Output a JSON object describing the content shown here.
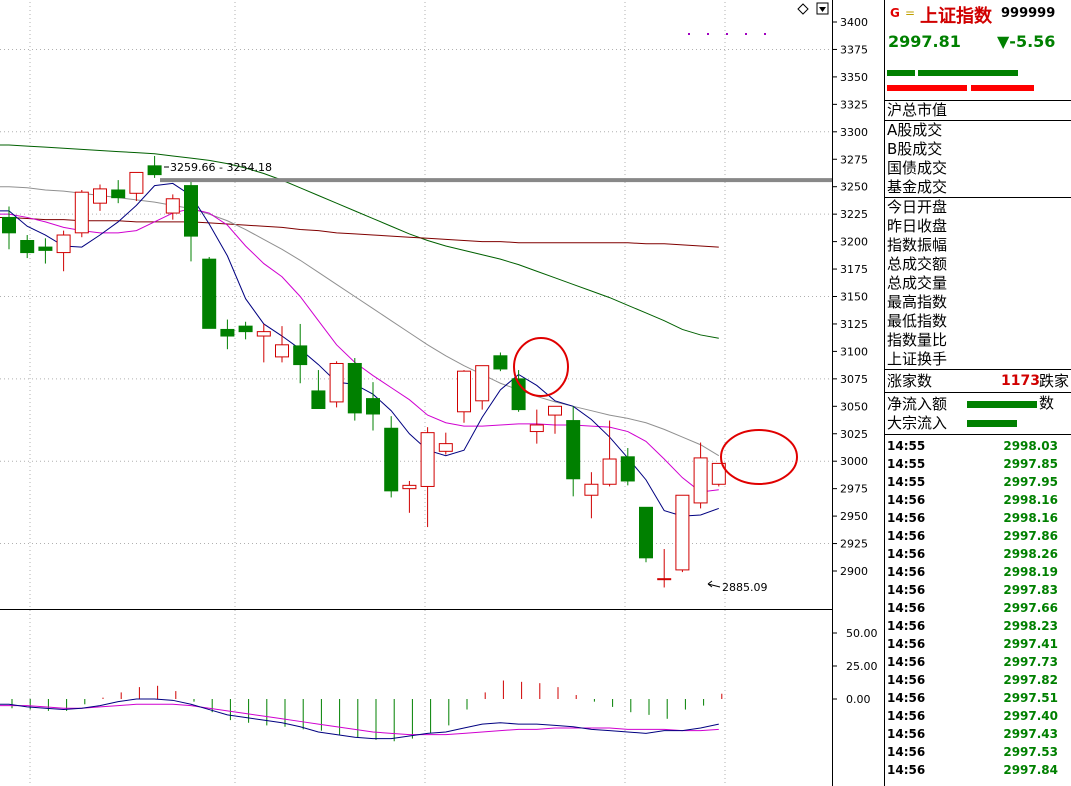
{
  "header": {
    "g_icon": "G",
    "eq_icon": "=",
    "name": "上证指数",
    "code": "999999"
  },
  "price": {
    "last": "2997.81",
    "change": "▼-5.56"
  },
  "bars": {
    "green": "#008000",
    "red": "#ff0000"
  },
  "info_group1": [
    "沪总市值"
  ],
  "info_group2": [
    "A股成交",
    "B股成交",
    "国债成交",
    "基金成交"
  ],
  "info_group3": [
    "今日开盘",
    "昨日收盘",
    "指数振幅",
    "总成交额",
    "总成交量",
    "最高指数",
    "最低指数",
    "指数量比",
    "上证换手"
  ],
  "advance": {
    "label": "涨家数",
    "count": "1173",
    "decline_label": "跌家数"
  },
  "flows": [
    {
      "label": "净流入额"
    },
    {
      "label": "大宗流入"
    }
  ],
  "ticks": [
    {
      "t": "14:55",
      "p": "2998.03"
    },
    {
      "t": "14:55",
      "p": "2997.85"
    },
    {
      "t": "14:55",
      "p": "2997.95"
    },
    {
      "t": "14:56",
      "p": "2998.16"
    },
    {
      "t": "14:56",
      "p": "2998.16"
    },
    {
      "t": "14:56",
      "p": "2997.86"
    },
    {
      "t": "14:56",
      "p": "2998.26"
    },
    {
      "t": "14:56",
      "p": "2998.19"
    },
    {
      "t": "14:56",
      "p": "2997.83"
    },
    {
      "t": "14:56",
      "p": "2997.66"
    },
    {
      "t": "14:56",
      "p": "2998.23"
    },
    {
      "t": "14:56",
      "p": "2997.41"
    },
    {
      "t": "14:56",
      "p": "2997.73"
    },
    {
      "t": "14:56",
      "p": "2997.82"
    },
    {
      "t": "14:56",
      "p": "2997.51"
    },
    {
      "t": "14:56",
      "p": "2997.40"
    },
    {
      "t": "14:56",
      "p": "2997.43"
    },
    {
      "t": "14:56",
      "p": "2997.53"
    },
    {
      "t": "14:56",
      "p": "2997.84"
    }
  ],
  "chart_data": {
    "type": "candlestick",
    "price_axis": {
      "min": 2880,
      "max": 3410,
      "ticks": [
        3400,
        3375,
        3350,
        3325,
        3300,
        3275,
        3250,
        3225,
        3200,
        3175,
        3150,
        3125,
        3100,
        3075,
        3050,
        3025,
        3000,
        2975,
        2950,
        2925,
        2900
      ]
    },
    "high_label": "3259.66 - 3254.18",
    "low_label": "2885.09",
    "horizontal_line": 3256,
    "colors": {
      "up": "#d00000",
      "down": "#008000",
      "ma5": "#000080",
      "ma10": "#d000d0",
      "ma20": "#909090",
      "ma60": "#006000",
      "ma120": "#800000"
    },
    "candles": [
      {
        "o": 3222,
        "h": 3232,
        "l": 3193,
        "c": 3208
      },
      {
        "o": 3201,
        "h": 3206,
        "l": 3185,
        "c": 3190
      },
      {
        "o": 3195,
        "h": 3203,
        "l": 3180,
        "c": 3192
      },
      {
        "o": 3190,
        "h": 3210,
        "l": 3173,
        "c": 3206
      },
      {
        "o": 3208,
        "h": 3247,
        "l": 3204,
        "c": 3245
      },
      {
        "o": 3235,
        "h": 3252,
        "l": 3228,
        "c": 3248
      },
      {
        "o": 3247,
        "h": 3256,
        "l": 3235,
        "c": 3240
      },
      {
        "o": 3244,
        "h": 3262,
        "l": 3237,
        "c": 3263
      },
      {
        "o": 3269,
        "h": 3278,
        "l": 3258,
        "c": 3261
      },
      {
        "o": 3226,
        "h": 3243,
        "l": 3220,
        "c": 3239
      },
      {
        "o": 3251,
        "h": 3256,
        "l": 3182,
        "c": 3205
      },
      {
        "o": 3184,
        "h": 3186,
        "l": 3124,
        "c": 3121
      },
      {
        "o": 3120,
        "h": 3129,
        "l": 3102,
        "c": 3114
      },
      {
        "o": 3123,
        "h": 3127,
        "l": 3111,
        "c": 3118
      },
      {
        "o": 3114,
        "h": 3125,
        "l": 3090,
        "c": 3118
      },
      {
        "o": 3095,
        "h": 3123,
        "l": 3090,
        "c": 3106
      },
      {
        "o": 3105,
        "h": 3125,
        "l": 3071,
        "c": 3088
      },
      {
        "o": 3064,
        "h": 3083,
        "l": 3049,
        "c": 3048
      },
      {
        "o": 3054,
        "h": 3091,
        "l": 3049,
        "c": 3089
      },
      {
        "o": 3089,
        "h": 3094,
        "l": 3037,
        "c": 3044
      },
      {
        "o": 3057,
        "h": 3072,
        "l": 3028,
        "c": 3043
      },
      {
        "o": 3030,
        "h": 3041,
        "l": 2967,
        "c": 2973
      },
      {
        "o": 2975,
        "h": 2982,
        "l": 2953,
        "c": 2978
      },
      {
        "o": 2977,
        "h": 3031,
        "l": 2940,
        "c": 3026
      },
      {
        "o": 3009,
        "h": 3026,
        "l": 3006,
        "c": 3016
      },
      {
        "o": 3045,
        "h": 3083,
        "l": 3035,
        "c": 3082
      },
      {
        "o": 3055,
        "h": 3085,
        "l": 3047,
        "c": 3087
      },
      {
        "o": 3096,
        "h": 3099,
        "l": 3082,
        "c": 3084
      },
      {
        "o": 3075,
        "h": 3083,
        "l": 3045,
        "c": 3047
      },
      {
        "o": 3027,
        "h": 3047,
        "l": 3016,
        "c": 3033
      },
      {
        "o": 3042,
        "h": 3048,
        "l": 3025,
        "c": 3050
      },
      {
        "o": 3037,
        "h": 3050,
        "l": 2968,
        "c": 2984
      },
      {
        "o": 2969,
        "h": 2990,
        "l": 2948,
        "c": 2979
      },
      {
        "o": 2979,
        "h": 3037,
        "l": 2977,
        "c": 3002
      },
      {
        "o": 3004,
        "h": 3012,
        "l": 2978,
        "c": 2982
      },
      {
        "o": 2958,
        "h": 2958,
        "l": 2908,
        "c": 2912
      },
      {
        "o": 2893,
        "h": 2920,
        "l": 2885,
        "c": 2893
      },
      {
        "o": 2901,
        "h": 2969,
        "l": 2899,
        "c": 2969
      },
      {
        "o": 2962,
        "h": 3017,
        "l": 2957,
        "c": 3003
      },
      {
        "o": 2979,
        "h": 2998,
        "l": 2977,
        "c": 2998
      }
    ],
    "ma5": [
      3228,
      3214,
      3206,
      3196,
      3195,
      3206,
      3218,
      3233,
      3251,
      3253,
      3242,
      3216,
      3187,
      3148,
      3125,
      3114,
      3102,
      3088,
      3072,
      3070,
      3061,
      3046,
      3025,
      3010,
      3005,
      3010,
      3040,
      3065,
      3079,
      3069,
      3055,
      3050,
      3038,
      3022,
      3003,
      2983,
      2955,
      2950,
      2951,
      2957
    ],
    "ma10": [
      3225,
      3222,
      3218,
      3213,
      3210,
      3208,
      3208,
      3210,
      3218,
      3226,
      3230,
      3226,
      3215,
      3196,
      3180,
      3168,
      3150,
      3128,
      3106,
      3090,
      3078,
      3067,
      3056,
      3042,
      3035,
      3032,
      3032,
      3033,
      3034,
      3034,
      3033,
      3033,
      3032,
      3031,
      3027,
      3018,
      3002,
      2985,
      2972,
      2974
    ],
    "ma20": [
      3250,
      3249,
      3247,
      3246,
      3244,
      3242,
      3240,
      3238,
      3236,
      3233,
      3230,
      3225,
      3219,
      3211,
      3202,
      3193,
      3183,
      3172,
      3161,
      3150,
      3139,
      3128,
      3117,
      3106,
      3096,
      3087,
      3079,
      3071,
      3065,
      3059,
      3054,
      3050,
      3046,
      3042,
      3039,
      3035,
      3029,
      3022,
      3015,
      3005
    ],
    "ma60": [
      3288,
      3287,
      3286,
      3285,
      3284,
      3283,
      3282,
      3281,
      3280,
      3278,
      3276,
      3274,
      3271,
      3267,
      3262,
      3256,
      3249,
      3242,
      3235,
      3228,
      3221,
      3214,
      3207,
      3201,
      3196,
      3192,
      3188,
      3184,
      3179,
      3173,
      3167,
      3161,
      3155,
      3149,
      3142,
      3135,
      3128,
      3120,
      3115,
      3112
    ],
    "ma120": [
      3222,
      3221,
      3220,
      3220,
      3219,
      3219,
      3219,
      3218,
      3218,
      3218,
      3218,
      3217,
      3216,
      3215,
      3214,
      3213,
      3211,
      3210,
      3208,
      3207,
      3206,
      3205,
      3204,
      3203,
      3202,
      3201,
      3200,
      3200,
      3199,
      3199,
      3199,
      3199,
      3199,
      3199,
      3199,
      3198,
      3198,
      3197,
      3196,
      3195
    ],
    "indicator": {
      "axis": {
        "min": -30,
        "max": 60,
        "ticks": [
          50,
          25,
          0
        ]
      },
      "tick_labels": [
        "50.00",
        "25.00",
        "0.00"
      ],
      "macd": [
        -7,
        -8,
        -9,
        -9,
        -4,
        1,
        5,
        9,
        10,
        6,
        -2,
        -10,
        -16,
        -18,
        -20,
        -21,
        -23,
        -24,
        -27,
        -29,
        -31,
        -32,
        -30,
        -26,
        -20,
        -8,
        5,
        14,
        13,
        12,
        9,
        3,
        -2,
        -6,
        -10,
        -12,
        -15,
        -8,
        -5,
        4
      ],
      "dif": [
        -4,
        -6,
        -7,
        -8,
        -7,
        -5,
        -2,
        0,
        0,
        -1,
        -4,
        -8,
        -12,
        -14,
        -16,
        -18,
        -21,
        -25,
        -27,
        -29,
        -30,
        -30,
        -28,
        -26,
        -25,
        -22,
        -19,
        -18,
        -19,
        -19,
        -20,
        -21,
        -23,
        -24,
        -25,
        -26,
        -24,
        -24,
        -22,
        -19
      ],
      "dea": [
        -5,
        -5,
        -6,
        -7,
        -7,
        -6,
        -5,
        -4,
        -4,
        -4,
        -5,
        -7,
        -9,
        -11,
        -13,
        -15,
        -17,
        -19,
        -21,
        -23,
        -25,
        -26,
        -27,
        -27,
        -27,
        -26,
        -25,
        -24,
        -23,
        -23,
        -22,
        -22,
        -22,
        -22,
        -23,
        -23,
        -23,
        -24,
        -24,
        -23
      ]
    }
  }
}
